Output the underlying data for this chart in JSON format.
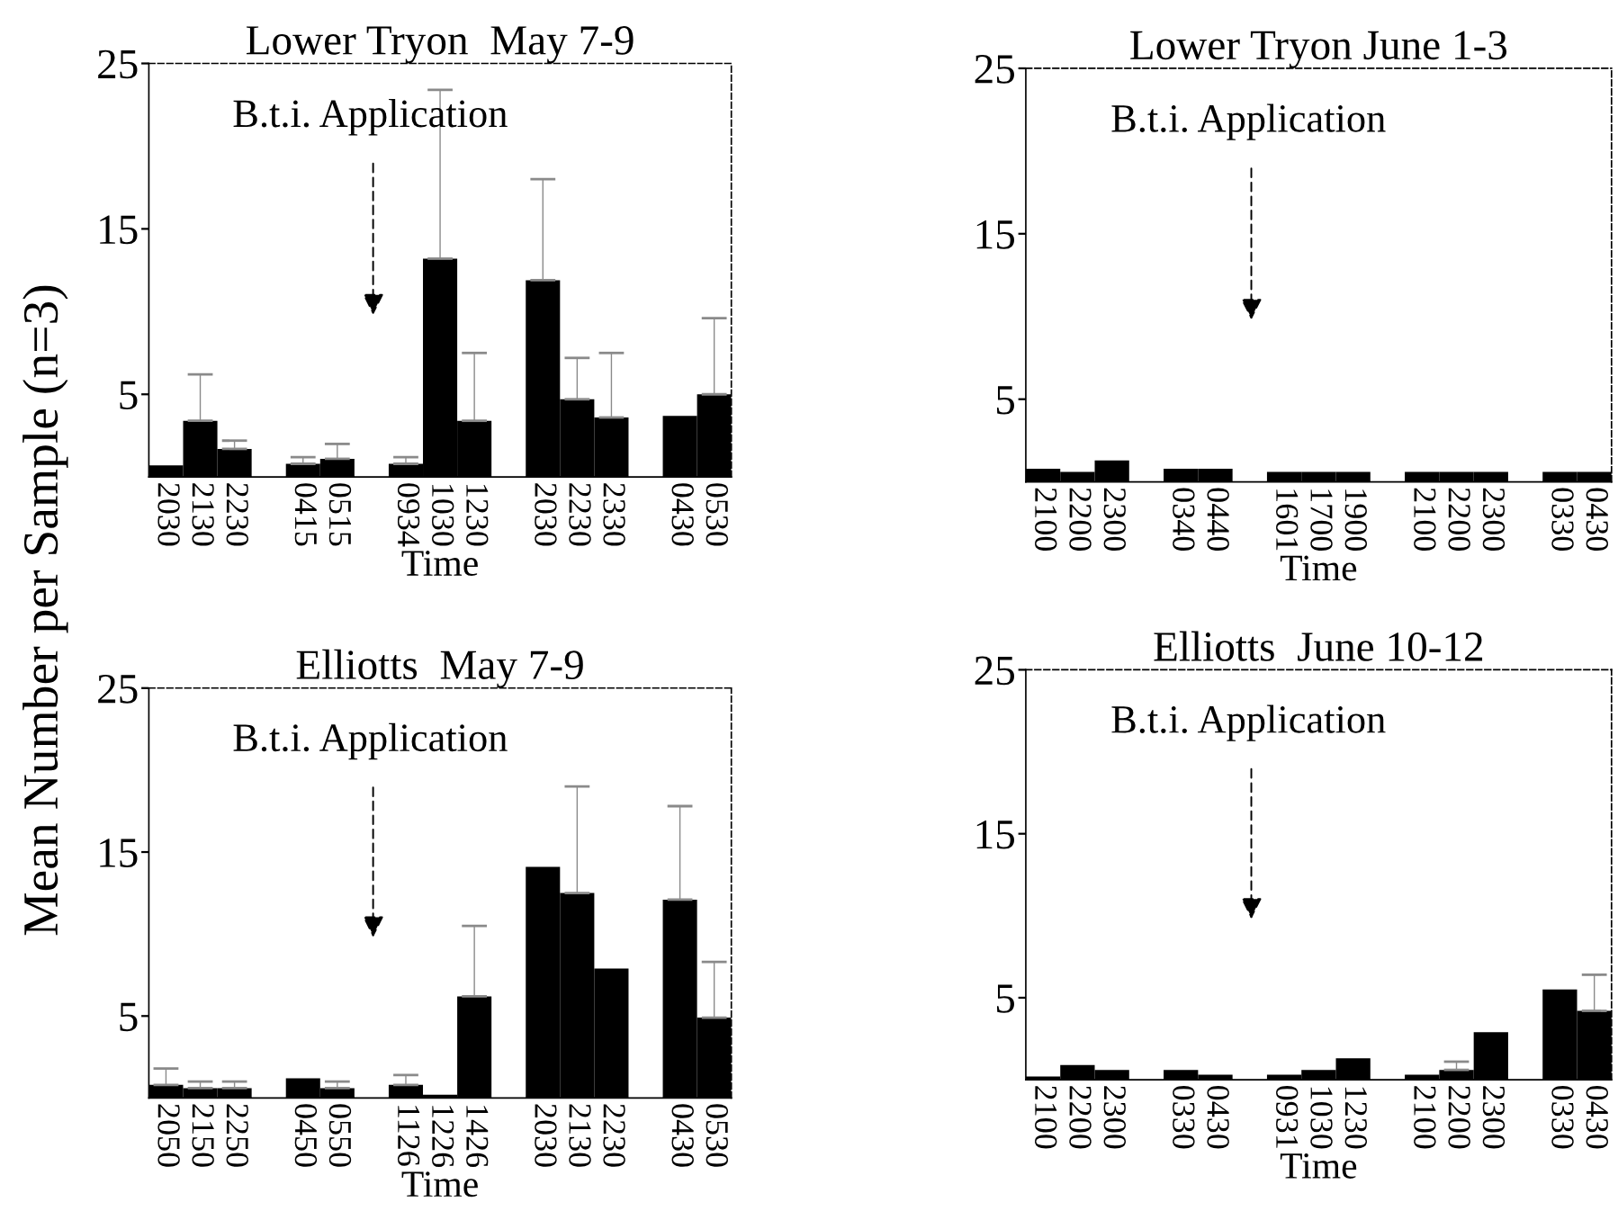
{
  "chart_data": [
    {
      "type": "bar",
      "title": "Lower Tryon  May 7-9",
      "xlabel": "Time",
      "ylabel": "Mean Number per Sample (n=3)",
      "annotations": [
        "B.t.i. Application"
      ],
      "color": "#000000",
      "ylim": [
        0,
        25
      ],
      "yticks": [
        5,
        15,
        25
      ],
      "categories": [
        "2030",
        "2130",
        "2230",
        null,
        "0415",
        "0515",
        null,
        "0934",
        "1030",
        "1230",
        null,
        "2030",
        "2230",
        "2330",
        null,
        "0430",
        "0530"
      ],
      "values": [
        0.7,
        3.4,
        1.7,
        null,
        0.8,
        1.1,
        null,
        0.8,
        13.2,
        3.4,
        null,
        11.9,
        4.7,
        3.6,
        null,
        3.7,
        5.0
      ],
      "errors": [
        null,
        [
          3.4,
          6.2
        ],
        [
          1.7,
          2.2
        ],
        null,
        [
          0.8,
          1.2
        ],
        [
          1.1,
          2.0
        ],
        null,
        [
          0.8,
          1.2
        ],
        [
          13.2,
          23.4
        ],
        [
          3.4,
          7.5
        ],
        null,
        [
          11.9,
          18.0
        ],
        [
          4.7,
          7.2
        ],
        [
          3.6,
          7.5
        ],
        null,
        null,
        [
          5.0,
          9.6
        ]
      ]
    },
    {
      "type": "bar",
      "title": "Lower Tryon June 1-3",
      "xlabel": "Time",
      "annotations": [
        "B.t.i. Application"
      ],
      "color": "#000000",
      "ylim": [
        0,
        25
      ],
      "yticks": [
        5,
        15,
        25
      ],
      "categories": [
        "2100",
        "2200",
        "2300",
        null,
        "0340",
        "0440",
        null,
        "1601",
        "1700",
        "1900",
        null,
        "2100",
        "2200",
        "2300",
        null,
        "0330",
        "0430"
      ],
      "values": [
        0.8,
        0.6,
        1.3,
        null,
        0.8,
        0.8,
        null,
        0.6,
        0.6,
        0.6,
        null,
        0.6,
        0.6,
        0.6,
        null,
        0.6,
        0.6
      ]
    },
    {
      "type": "bar",
      "title": "Elliotts  May 7-9",
      "xlabel": "Time",
      "annotations": [
        "B.t.i. Application"
      ],
      "color": "#000000",
      "ylim": [
        0,
        25
      ],
      "yticks": [
        5,
        15,
        25
      ],
      "categories": [
        "2050",
        "2150",
        "2250",
        null,
        "0450",
        "0550",
        null,
        "1126",
        "1226",
        "1426",
        null,
        "2030",
        "2130",
        "2230",
        null,
        "0430",
        "0530"
      ],
      "values": [
        0.8,
        0.6,
        0.6,
        null,
        1.2,
        0.6,
        null,
        0.8,
        0.2,
        6.2,
        null,
        14.1,
        12.5,
        7.9,
        null,
        12.1,
        4.9
      ],
      "errors": [
        [
          0.8,
          1.8
        ],
        [
          0.6,
          1.0
        ],
        [
          0.6,
          1.0
        ],
        null,
        null,
        [
          0.6,
          1.0
        ],
        null,
        [
          0.8,
          1.4
        ],
        null,
        [
          6.2,
          10.5
        ],
        null,
        null,
        [
          12.5,
          19.0
        ],
        null,
        null,
        [
          12.1,
          17.8
        ],
        [
          4.9,
          8.3
        ]
      ]
    },
    {
      "type": "bar",
      "title": "Elliotts  June 10-12",
      "xlabel": "Time",
      "annotations": [
        "B.t.i. Application"
      ],
      "color": "#000000",
      "ylim": [
        0,
        25
      ],
      "yticks": [
        5,
        15,
        25
      ],
      "categories": [
        "2100",
        "2200",
        "2300",
        null,
        "0330",
        "0430",
        null,
        "0931",
        "1030",
        "1230",
        null,
        "2100",
        "2200",
        "2300",
        null,
        "0330",
        "0430"
      ],
      "values": [
        0.2,
        0.9,
        0.6,
        null,
        0.6,
        0.3,
        null,
        0.3,
        0.6,
        1.3,
        null,
        0.3,
        0.6,
        2.9,
        null,
        5.5,
        4.2
      ],
      "errors": [
        null,
        null,
        null,
        null,
        null,
        null,
        null,
        null,
        null,
        null,
        null,
        null,
        [
          0.6,
          1.1
        ],
        null,
        null,
        null,
        [
          4.2,
          6.4
        ]
      ]
    }
  ]
}
